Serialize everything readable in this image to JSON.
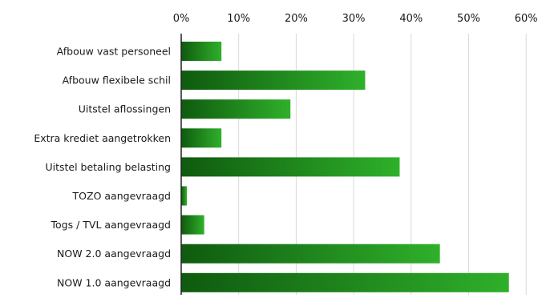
{
  "chart_data": {
    "type": "bar",
    "orientation": "horizontal",
    "title": "",
    "xlabel": "",
    "ylabel": "",
    "categories": [
      "Afbouw vast personeel",
      "Afbouw flexibele schil",
      "Uitstel aflossingen",
      "Extra krediet aangetrokken",
      "Uitstel betaling belasting",
      "TOZO aangevraagd",
      "Togs / TVL aangevraagd",
      "NOW 2.0 aangevraagd",
      "NOW 1.0 aangevraagd"
    ],
    "values": [
      7,
      32,
      19,
      7,
      38,
      1,
      4,
      45,
      57
    ],
    "x_ticks": [
      "0%",
      "10%",
      "20%",
      "30%",
      "40%",
      "50%",
      "60%"
    ],
    "xlim": [
      0,
      60
    ],
    "x_axis_position": "top",
    "grid": true,
    "bar_color_dark": "#0f5a0f",
    "bar_color_light": "#2fb02a",
    "grid_color": "#d9d9d9"
  }
}
